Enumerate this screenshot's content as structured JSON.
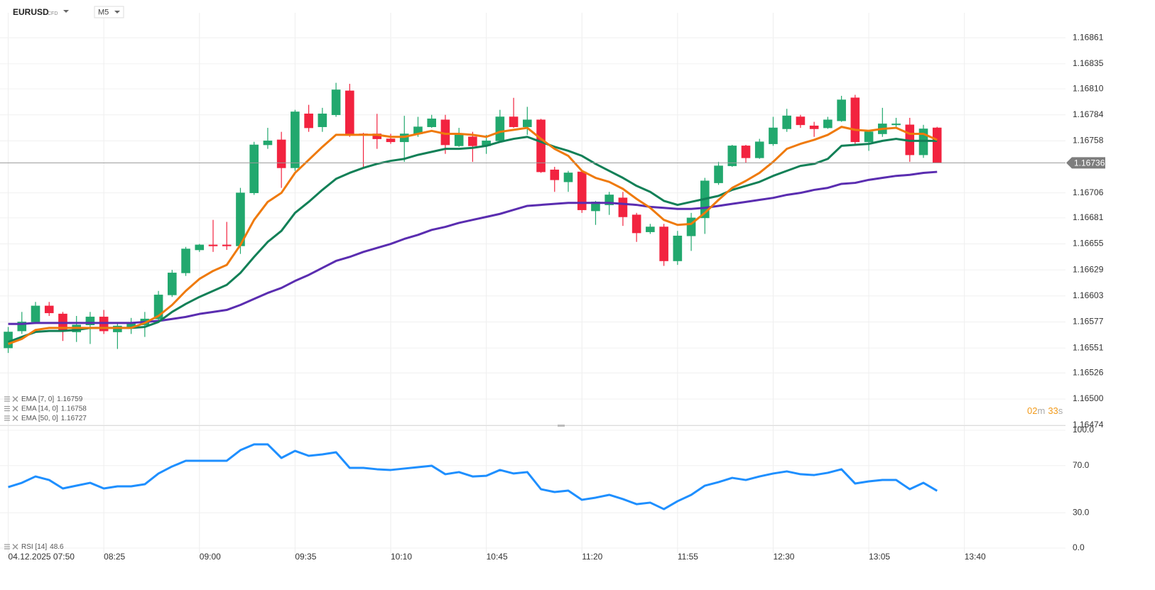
{
  "header": {
    "symbol": "EURUSD",
    "symbol_type": "CFD",
    "timeframe": "M5"
  },
  "countdown": {
    "minutes": "02",
    "minutes_unit": "m",
    "seconds": "33",
    "seconds_unit": "s"
  },
  "chart_data": [
    {
      "type": "candlestick",
      "open": [
        1.16551,
        1.16568,
        1.16577,
        1.16593,
        1.16585,
        1.16567,
        1.16574,
        1.16582,
        1.16567,
        1.16572,
        1.16574,
        1.1658,
        1.16604,
        1.16626,
        1.16649,
        1.16654,
        1.16654,
        1.16653,
        1.16706,
        1.16754,
        1.16759,
        1.16731,
        1.16785,
        1.16772,
        1.16784,
        1.16808,
        1.16765,
        1.16765,
        1.1676,
        1.16757,
        1.16765,
        1.16772,
        1.16779,
        1.16753,
        1.16762,
        1.16753,
        1.16758,
        1.16782,
        1.16772,
        1.16779,
        1.16729,
        1.16717,
        1.16727,
        1.16688,
        1.16694,
        1.16701,
        1.16684,
        1.16667,
        1.16672,
        1.16638,
        1.16663,
        1.16681,
        1.16716,
        1.16733,
        1.16753,
        1.16741,
        1.16755,
        1.1677,
        1.16782,
        1.16773,
        1.16771,
        1.16778,
        1.16801,
        1.16757,
        1.16765,
        1.16774,
        1.16774,
        1.16744,
        1.16771
      ],
      "high": [
        1.16572,
        1.16587,
        1.16597,
        1.16597,
        1.16587,
        1.16583,
        1.16587,
        1.16589,
        1.16576,
        1.16581,
        1.16587,
        1.16608,
        1.16629,
        1.16652,
        1.16655,
        1.16679,
        1.16677,
        1.16711,
        1.16757,
        1.16771,
        1.16767,
        1.16789,
        1.16794,
        1.16791,
        1.16816,
        1.16815,
        1.16766,
        1.16785,
        1.16765,
        1.16783,
        1.16782,
        1.16784,
        1.16784,
        1.16771,
        1.16767,
        1.16764,
        1.16789,
        1.16801,
        1.16792,
        1.1678,
        1.16732,
        1.16728,
        1.16728,
        1.16698,
        1.16707,
        1.16707,
        1.16686,
        1.16675,
        1.16675,
        1.16668,
        1.16686,
        1.16721,
        1.16737,
        1.16754,
        1.16754,
        1.1676,
        1.16782,
        1.1679,
        1.16784,
        1.16777,
        1.16782,
        1.16803,
        1.16804,
        1.16768,
        1.16791,
        1.16781,
        1.16781,
        1.16774,
        1.16772
      ],
      "low": [
        1.16546,
        1.16565,
        1.16575,
        1.16583,
        1.16558,
        1.16557,
        1.16555,
        1.16565,
        1.1655,
        1.16565,
        1.16562,
        1.16578,
        1.16602,
        1.16623,
        1.16647,
        1.16647,
        1.16649,
        1.16645,
        1.16704,
        1.1675,
        1.16711,
        1.16728,
        1.16767,
        1.16767,
        1.16782,
        1.16762,
        1.16731,
        1.1675,
        1.16755,
        1.16737,
        1.16762,
        1.16771,
        1.16745,
        1.16752,
        1.16737,
        1.16745,
        1.16757,
        1.16771,
        1.16764,
        1.16726,
        1.16707,
        1.16707,
        1.16686,
        1.16674,
        1.16684,
        1.16673,
        1.16657,
        1.16665,
        1.16633,
        1.16634,
        1.16648,
        1.16665,
        1.16714,
        1.16732,
        1.16736,
        1.1674,
        1.16753,
        1.16767,
        1.16771,
        1.16762,
        1.1677,
        1.16777,
        1.16755,
        1.16748,
        1.16762,
        1.16772,
        1.16737,
        1.16741,
        1.16736
      ],
      "close": [
        1.16567,
        1.16577,
        1.16593,
        1.16586,
        1.16569,
        1.16574,
        1.16582,
        1.16568,
        1.16573,
        1.16576,
        1.1658,
        1.16604,
        1.16626,
        1.1665,
        1.16654,
        1.16653,
        1.16653,
        1.16706,
        1.16754,
        1.16758,
        1.16731,
        1.16787,
        1.16771,
        1.16785,
        1.16809,
        1.16765,
        1.16764,
        1.1676,
        1.16757,
        1.16765,
        1.16772,
        1.1678,
        1.16754,
        1.16764,
        1.16753,
        1.16758,
        1.16782,
        1.16772,
        1.16779,
        1.16727,
        1.16719,
        1.16726,
        1.16689,
        1.16697,
        1.16704,
        1.16682,
        1.16666,
        1.16672,
        1.16638,
        1.16663,
        1.16681,
        1.16718,
        1.16733,
        1.16753,
        1.16741,
        1.16757,
        1.16771,
        1.16783,
        1.16774,
        1.1677,
        1.16779,
        1.16799,
        1.16757,
        1.16767,
        1.16775,
        1.16775,
        1.16744,
        1.1677,
        1.16736
      ],
      "up_color": "#22a86e",
      "down_color": "#f2233f",
      "series": [
        {
          "name": "EMA [7, 0]",
          "color": "#ef7a0c",
          "values": [
            1.16555,
            1.1656,
            1.16569,
            1.16571,
            1.16571,
            1.16571,
            1.16571,
            1.16571,
            1.16571,
            1.16571,
            1.16576,
            1.16583,
            1.16594,
            1.16608,
            1.1662,
            1.16628,
            1.16634,
            1.16654,
            1.16679,
            1.16697,
            1.16706,
            1.16726,
            1.16739,
            1.16752,
            1.16764,
            1.16764,
            1.16764,
            1.16764,
            1.16762,
            1.16762,
            1.16765,
            1.16768,
            1.16765,
            1.16765,
            1.16764,
            1.16762,
            1.16767,
            1.16769,
            1.16771,
            1.1676,
            1.1675,
            1.16743,
            1.16728,
            1.16721,
            1.16717,
            1.1671,
            1.167,
            1.16691,
            1.16679,
            1.16674,
            1.16675,
            1.16686,
            1.16699,
            1.16711,
            1.16718,
            1.16726,
            1.16737,
            1.1675,
            1.16755,
            1.16759,
            1.16764,
            1.16772,
            1.16769,
            1.16768,
            1.1677,
            1.16771,
            1.16765,
            1.16765,
            1.16759
          ]
        },
        {
          "name": "EMA [14, 0]",
          "color": "#128057",
          "values": [
            1.16557,
            1.16562,
            1.16567,
            1.16568,
            1.16568,
            1.16569,
            1.16571,
            1.16571,
            1.16571,
            1.16571,
            1.16572,
            1.16577,
            1.16587,
            1.16595,
            1.16602,
            1.16608,
            1.16614,
            1.16626,
            1.16642,
            1.16657,
            1.16668,
            1.16686,
            1.16697,
            1.16709,
            1.1672,
            1.16726,
            1.16731,
            1.16735,
            1.16738,
            1.1674,
            1.16744,
            1.16747,
            1.1675,
            1.1675,
            1.16751,
            1.16753,
            1.16757,
            1.1676,
            1.16762,
            1.16757,
            1.16752,
            1.16748,
            1.16743,
            1.16735,
            1.16728,
            1.16721,
            1.16713,
            1.16707,
            1.16698,
            1.16694,
            1.16697,
            1.167,
            1.16703,
            1.16709,
            1.16713,
            1.16717,
            1.16723,
            1.16728,
            1.16733,
            1.16735,
            1.1674,
            1.16753,
            1.16754,
            1.16755,
            1.16758,
            1.1676,
            1.16758,
            1.16758,
            1.16758
          ]
        },
        {
          "name": "EMA [50, 0]",
          "color": "#5a2db0",
          "values": [
            1.16575,
            1.16575,
            1.16576,
            1.16576,
            1.16576,
            1.16576,
            1.16576,
            1.16576,
            1.16576,
            1.16576,
            1.16577,
            1.16578,
            1.1658,
            1.16582,
            1.16585,
            1.16587,
            1.16589,
            1.16594,
            1.166,
            1.16606,
            1.16611,
            1.16618,
            1.16624,
            1.16631,
            1.16638,
            1.16642,
            1.16647,
            1.16651,
            1.16655,
            1.1666,
            1.16664,
            1.16669,
            1.16672,
            1.16676,
            1.16679,
            1.16682,
            1.16685,
            1.16689,
            1.16693,
            1.16694,
            1.16695,
            1.16696,
            1.16696,
            1.16696,
            1.16696,
            1.16695,
            1.16694,
            1.16692,
            1.16691,
            1.1669,
            1.1669,
            1.16691,
            1.16693,
            1.16695,
            1.16697,
            1.16699,
            1.16701,
            1.16704,
            1.16706,
            1.16709,
            1.16711,
            1.16715,
            1.16716,
            1.16719,
            1.16721,
            1.16723,
            1.16724,
            1.16726,
            1.16727
          ]
        }
      ],
      "xlim": [
        -0.6,
        77.4
      ],
      "ylim": [
        1.16473,
        1.16886
      ],
      "yticks": [
        1.16861,
        1.16835,
        {
          "value": 1.1681,
          "label": "1.16810"
        },
        1.16784,
        1.16758,
        1.16706,
        1.16681,
        1.16655,
        1.16629,
        1.16603,
        1.16577,
        1.16551,
        1.16526,
        {
          "value": 1.165,
          "label": "1.16500"
        },
        1.16474
      ],
      "grid": true
    },
    {
      "type": "line",
      "series": [
        {
          "name": "RSI [14]",
          "color": "#1e8fff",
          "values": [
            51.8,
            55.4,
            60.8,
            57.8,
            50.6,
            53.0,
            55.4,
            50.6,
            52.4,
            52.4,
            54.2,
            63.3,
            69.3,
            74.1,
            74.1,
            74.1,
            74.1,
            83.1,
            88.0,
            88.0,
            76.5,
            82.5,
            78.3,
            79.5,
            81.3,
            68.1,
            68.1,
            66.9,
            66.3,
            67.5,
            68.7,
            69.9,
            62.7,
            64.5,
            60.8,
            61.4,
            66.3,
            63.3,
            64.5,
            50.0,
            47.6,
            48.8,
            41.0,
            42.8,
            45.2,
            41.6,
            37.3,
            38.6,
            33.1,
            39.8,
            45.2,
            53.0,
            56.0,
            59.6,
            57.8,
            60.8,
            63.3,
            65.1,
            62.7,
            62.0,
            63.9,
            66.9,
            54.8,
            56.6,
            57.8,
            57.8,
            50.0,
            55.4,
            48.6
          ]
        }
      ],
      "xlim": [
        -0.6,
        77.4
      ],
      "ylim": [
        -4.8,
        103.6
      ],
      "yticks": [
        {
          "value": 100,
          "label": "100.0"
        },
        {
          "value": 70,
          "label": "70.0"
        },
        {
          "value": 30,
          "label": "30.0"
        },
        {
          "value": 0,
          "label": "0.0"
        }
      ],
      "xticks": [
        {
          "value": 0,
          "label": "04.12.2025 07:50"
        },
        {
          "value": 7,
          "label": "08:25"
        },
        {
          "value": 14,
          "label": "09:00"
        },
        {
          "value": 21,
          "label": "09:35"
        },
        {
          "value": 28,
          "label": "10:10"
        },
        {
          "value": 35,
          "label": "10:45"
        },
        {
          "value": 42,
          "label": "11:20"
        },
        {
          "value": 49,
          "label": "11:55"
        },
        {
          "value": 56,
          "label": "12:30"
        },
        {
          "value": 63,
          "label": "13:05"
        },
        {
          "value": 70,
          "label": "13:40"
        }
      ],
      "grid": true
    }
  ]
}
